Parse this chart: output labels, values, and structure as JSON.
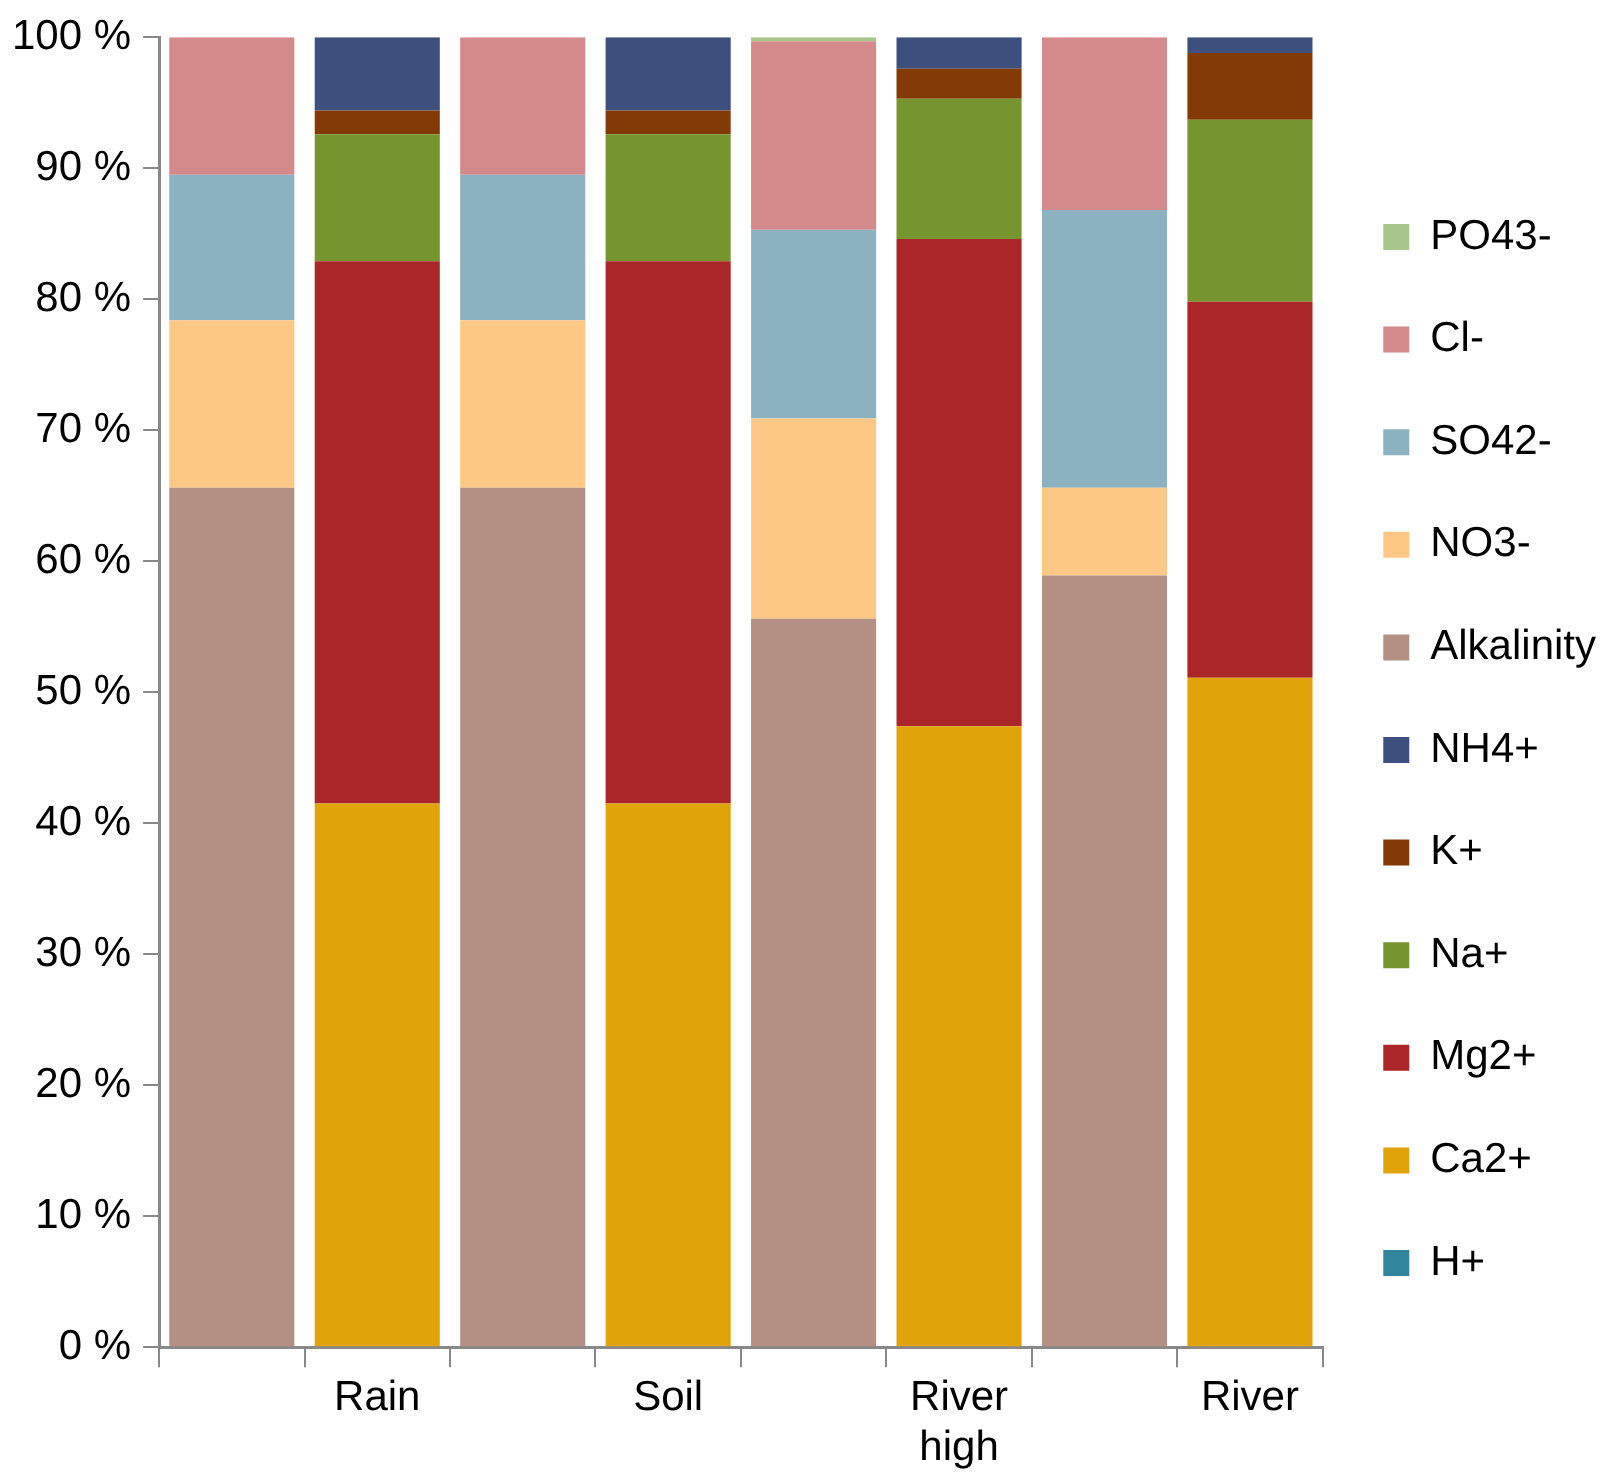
{
  "chart_data": {
    "type": "bar",
    "stacked": true,
    "categories": [
      null,
      "Rain",
      null,
      "Soil",
      null,
      "River high",
      null,
      "River"
    ],
    "ylim": [
      0,
      100
    ],
    "yticks": [
      {
        "value": 0,
        "label": "0 %"
      },
      {
        "value": 10,
        "label": "10 %"
      },
      {
        "value": 20,
        "label": "20 %"
      },
      {
        "value": 30,
        "label": "30 %"
      },
      {
        "value": 40,
        "label": "40 %"
      },
      {
        "value": 50,
        "label": "50 %"
      },
      {
        "value": 60,
        "label": "60 %"
      },
      {
        "value": 70,
        "label": "70 %"
      },
      {
        "value": 80,
        "label": "80 %"
      },
      {
        "value": 90,
        "label": "90 %"
      },
      {
        "value": 100,
        "label": "100 %"
      }
    ],
    "grid": false,
    "legend": "right",
    "series": [
      {
        "name": "H+",
        "color": "#31859c",
        "values": [
          null,
          0,
          null,
          0,
          null,
          0,
          null,
          0
        ]
      },
      {
        "name": "Ca2+",
        "color": "#e0a30a",
        "values": [
          null,
          41.5,
          null,
          41.5,
          null,
          47.4,
          null,
          51.1
        ]
      },
      {
        "name": "Mg2+",
        "color": "#aa2629",
        "values": [
          null,
          41.4,
          null,
          41.4,
          null,
          37.2,
          null,
          28.7
        ]
      },
      {
        "name": "Na+",
        "color": "#76952f",
        "values": [
          null,
          9.7,
          null,
          9.7,
          null,
          10.7,
          null,
          13.9
        ]
      },
      {
        "name": "K+",
        "color": "#833a07",
        "values": [
          null,
          1.8,
          null,
          1.8,
          null,
          2.3,
          null,
          5.1
        ]
      },
      {
        "name": "NH4+",
        "color": "#3d4f7c",
        "values": [
          null,
          5.6,
          null,
          5.6,
          null,
          2.4,
          null,
          1.2
        ]
      },
      {
        "name": "Alkalinity",
        "color": "#b49084",
        "values": [
          65.6,
          null,
          65.6,
          null,
          55.6,
          null,
          58.9,
          null
        ]
      },
      {
        "name": "NO3-",
        "color": "#fdc885",
        "values": [
          12.8,
          null,
          12.8,
          null,
          15.3,
          null,
          6.7,
          null
        ]
      },
      {
        "name": "SO42-",
        "color": "#8cb1c0",
        "values": [
          11.1,
          null,
          11.1,
          null,
          14.4,
          null,
          21.2,
          null
        ]
      },
      {
        "name": "Cl-",
        "color": "#d48a8a",
        "values": [
          10.5,
          null,
          10.5,
          null,
          14.4,
          null,
          13.2,
          null
        ]
      },
      {
        "name": "PO43-",
        "color": "#a8c68c",
        "values": [
          null,
          null,
          null,
          null,
          0.3,
          null,
          null,
          null
        ]
      }
    ]
  }
}
